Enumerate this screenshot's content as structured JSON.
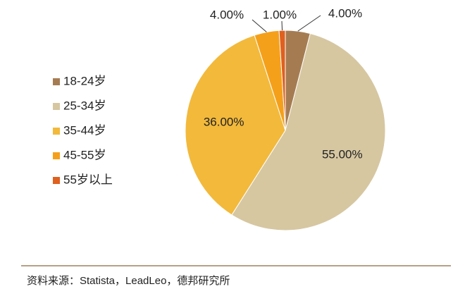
{
  "chart_data": {
    "type": "pie",
    "categories": [
      "18-24岁",
      "25-34岁",
      "35-44岁",
      "45-55岁",
      "55岁以上"
    ],
    "values": [
      4,
      55,
      36,
      4,
      1
    ],
    "value_labels": [
      "4.00%",
      "55.00%",
      "36.00%",
      "4.00%",
      "1.00%"
    ],
    "colors": [
      "#a57c52",
      "#d6c7a1",
      "#f2b93b",
      "#f5a01a",
      "#e0601e"
    ],
    "legend": "left",
    "source": "资料来源：Statista，LeadLeo，德邦研究所"
  }
}
